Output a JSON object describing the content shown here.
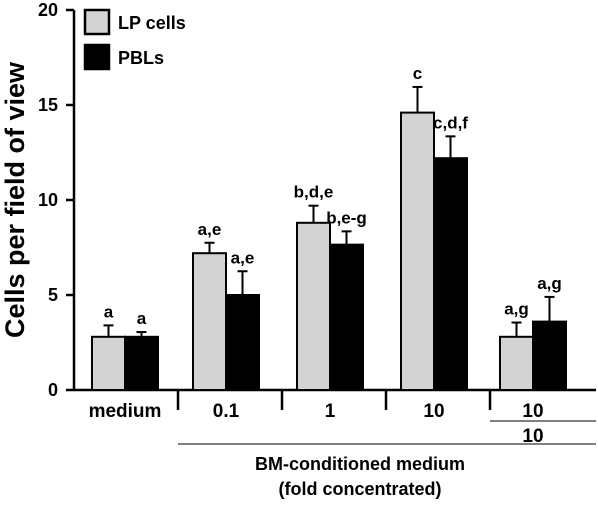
{
  "chart_data": {
    "type": "bar",
    "ylabel": "Cells per field of view",
    "ylim": [
      0,
      20
    ],
    "yticks": [
      0,
      5,
      10,
      15,
      20
    ],
    "grid": false,
    "legend_position": "top-left",
    "categories": [
      "medium",
      "0.1",
      "1",
      "10",
      "10"
    ],
    "category_sublabels": [
      "",
      "",
      "",
      "",
      "10"
    ],
    "group_caption_line1": "BM-conditioned medium",
    "group_caption_line2": "(fold concentrated)",
    "series": [
      {
        "name": "LP cells",
        "color": "#d3d3d3",
        "values": [
          2.8,
          7.2,
          8.8,
          14.6,
          2.8
        ],
        "errors": [
          0.6,
          0.55,
          0.9,
          1.35,
          0.75
        ],
        "labels": [
          "a",
          "a,e",
          "b,d,e",
          "c",
          "a,g"
        ]
      },
      {
        "name": "PBLs",
        "color": "#000000",
        "values": [
          2.8,
          5.0,
          7.65,
          12.2,
          3.6
        ],
        "errors": [
          0.25,
          1.25,
          0.7,
          1.15,
          1.3
        ],
        "labels": [
          "a",
          "a,e",
          "b,e-g",
          "c,d,f",
          "a,g"
        ]
      }
    ]
  }
}
